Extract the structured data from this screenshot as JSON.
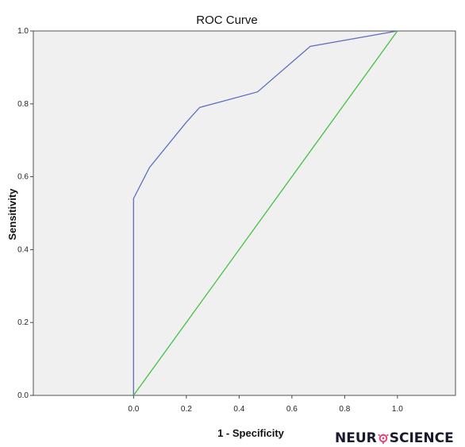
{
  "chart_data": {
    "type": "line",
    "title": "ROC Curve",
    "xlabel": "1 - Specificity",
    "ylabel": "Sensitivity",
    "xlim": [
      -0.38,
      1.22
    ],
    "ylim": [
      0,
      1.0
    ],
    "x_ticks": [
      "0.0",
      "0.2",
      "0.4",
      "0.6",
      "0.8",
      "1.0"
    ],
    "y_ticks": [
      "0.0",
      "0.2",
      "0.4",
      "0.6",
      "0.8",
      "1.0"
    ],
    "grid": false,
    "plot_background": "#f0f0f0",
    "series": [
      {
        "color": "#5c6fc0",
        "x": [
          0.0,
          0.0,
          0.06,
          0.2,
          0.25,
          0.47,
          0.67,
          1.0
        ],
        "y": [
          0.0,
          0.54,
          0.625,
          0.75,
          0.79,
          0.833,
          0.958,
          1.0
        ]
      },
      {
        "color": "#44c044",
        "x": [
          0.0,
          1.0
        ],
        "y": [
          0.0,
          1.0
        ]
      }
    ]
  },
  "logo": {
    "left": "NEUR",
    "right": "SCIENCE"
  }
}
